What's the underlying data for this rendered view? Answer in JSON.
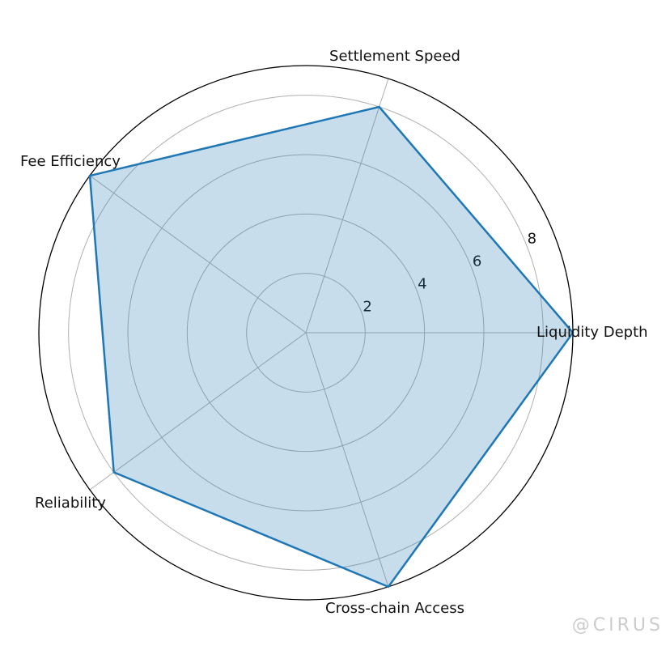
{
  "chart_data": {
    "type": "radar",
    "categories": [
      "Liquidity Depth",
      "Settlement Speed",
      "Fee Efficiency",
      "Reliability",
      "Cross-chain Access"
    ],
    "values": [
      9,
      8,
      9,
      8,
      9
    ],
    "color": "#1f77b4",
    "ylim": [
      0,
      9
    ],
    "yticks": [
      2,
      4,
      6,
      8
    ],
    "grid": true
  },
  "watermark": "@CIRUS"
}
